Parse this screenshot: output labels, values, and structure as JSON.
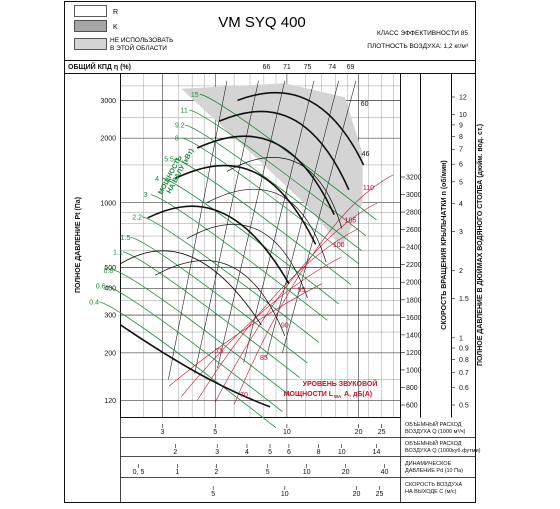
{
  "header": {
    "title": "VM SYQ 400",
    "class_label": "КЛАСС ЭФФЕКТИВНОСТИ 85",
    "density_label": "ПЛОТНОСТЬ ВОЗДУХА: 1,2 кг/м³"
  },
  "legend": [
    {
      "key": "R",
      "label": "R",
      "color": "#ffffff"
    },
    {
      "key": "K",
      "label": "K",
      "color": "#a6a6a6"
    },
    {
      "key": "na",
      "label": "НЕ ИСПОЛЬЗОВАТЬ В ЭТОЙ ОБЛАСТИ",
      "line1": "НЕ ИСПОЛЬЗОВАТЬ",
      "line2": "В ЭТОЙ ОБЛАСТИ",
      "color": "#d4d4d4"
    }
  ],
  "labels": {
    "efficiency": "ОБЩИЙ КПД η (%)",
    "left_axis": "ПОЛНОЕ ДАВЛЕНИЕ Pt (Па)",
    "speed_axis": "СКОРОСТЬ ВРАЩЕНИЯ КРЫЛЬЧАТКИ n (об/мин)",
    "right_axis": "ПОЛНОЕ ДАВЛЕНИЕ В ДЮЙМАХ ВОДЯНОГО СТОЛБА (дюйм. вод. ст.)",
    "power1": "МОЩНОСТЬ",
    "power2": "НА ВАЛУ (кВт)",
    "sound1": "УРОВЕНЬ ЗВУКОВОЙ",
    "sound2": "МОЩНОСТИ L",
    "sound_sub": "WA",
    "sound3": "A, дБ(A)"
  },
  "bottom_rows": [
    {
      "line1": "ОБЪЕМНЫЙ РАСХОД",
      "line2": "ВОЗДУХА Q (1000 м³/ч)"
    },
    {
      "line1": "ОБЪЕМНЫЙ РАСХОД",
      "line2": "ВОЗДУХА Q (1000куб.футми)"
    },
    {
      "line1": "ДИНАМИЧЕСКОЕ",
      "line2": "ДАВЛЕНИЕ Pd (10 Па)"
    },
    {
      "line1": "СКОРОСТЬ ВОЗДУХА",
      "line2": "НА ВЫХОДЕ C (м/с)"
    }
  ],
  "chart_data": {
    "type": "line",
    "title": "VM SYQ 400",
    "x_axis": {
      "label": "ОБЪЕМНЫЙ РАСХОД ВОЗДУХА Q (1000 м³/ч)",
      "scale": "log",
      "range": [
        2,
        30
      ]
    },
    "y_axis": {
      "label": "ПОЛНОЕ ДАВЛЕНИЕ Pt (Па)",
      "scale": "log",
      "range": [
        100,
        4000
      ]
    },
    "pressure_ticks": [
      3000,
      2000,
      1000,
      500,
      400,
      300,
      200,
      120
    ],
    "q_ticks": [
      {
        "v": 3,
        "label": "3"
      },
      {
        "v": 5,
        "label": "5"
      },
      {
        "v": 10,
        "label": "10"
      },
      {
        "v": 20,
        "label": "20"
      },
      {
        "v": 25,
        "label": "25"
      }
    ],
    "cfm_ticks": [
      {
        "v": 2,
        "label": "2"
      },
      {
        "v": 3,
        "label": "3"
      },
      {
        "v": 4,
        "label": "4"
      },
      {
        "v": 5,
        "label": "5"
      },
      {
        "v": 6,
        "label": "6"
      },
      {
        "v": 8,
        "label": "8"
      },
      {
        "v": 10,
        "label": "10"
      },
      {
        "v": 14,
        "label": "14"
      }
    ],
    "pd_ticks": [
      {
        "v": 0.5,
        "label": "0, 5"
      },
      {
        "v": 1,
        "label": "1"
      },
      {
        "v": 2,
        "label": "2"
      },
      {
        "v": 5,
        "label": "5"
      },
      {
        "v": 10,
        "label": "10"
      },
      {
        "v": 20,
        "label": "20"
      },
      {
        "v": 40,
        "label": "40"
      }
    ],
    "c_ticks": [
      {
        "v": 5,
        "label": "5"
      },
      {
        "v": 10,
        "label": "10"
      },
      {
        "v": 20,
        "label": "20"
      },
      {
        "v": 25,
        "label": "25"
      }
    ],
    "speed_ticks": [
      3200,
      3000,
      2800,
      2600,
      2400,
      2200,
      2000,
      1800,
      1600,
      1400,
      1200,
      1000,
      800,
      600
    ],
    "inch_ticks": [
      12,
      10,
      9,
      8,
      7,
      6,
      5,
      4,
      3,
      2,
      1.5,
      1,
      0.9,
      0.8,
      0.7,
      0.6,
      0.5
    ],
    "efficiency_ticks": [
      {
        "label": "66",
        "q": 8.2
      },
      {
        "label": "71",
        "q": 10.0
      },
      {
        "label": "75",
        "q": 12.2
      },
      {
        "label": "74",
        "q": 15.5
      },
      {
        "label": "69",
        "q": 18.5
      }
    ],
    "power_labels": [
      {
        "label": "15",
        "q": 4.1,
        "p": 3200
      },
      {
        "label": "11",
        "q": 3.7,
        "p": 2700
      },
      {
        "label": "9.2",
        "q": 3.55,
        "p": 2300
      },
      {
        "label": "8",
        "q": 3.45,
        "p": 2000
      },
      {
        "label": "5.5",
        "q": 3.2,
        "p": 1600
      },
      {
        "label": "4",
        "q": 2.85,
        "p": 1300
      },
      {
        "label": "3",
        "q": 2.55,
        "p": 1090
      },
      {
        "label": "2.2",
        "q": 2.35,
        "p": 860
      },
      {
        "label": "1.5",
        "q": 2.1,
        "p": 690
      },
      {
        "label": "1.1",
        "q": 1.95,
        "p": 590
      },
      {
        "label": "0.8",
        "q": 1.78,
        "p": 485
      },
      {
        "label": "0.6",
        "q": 1.65,
        "p": 410
      },
      {
        "label": "0.4",
        "q": 1.55,
        "p": 345
      }
    ],
    "sound_labels": [
      {
        "label": "110",
        "q": 22,
        "p": 1180
      },
      {
        "label": "105",
        "q": 18.5,
        "p": 830
      },
      {
        "label": "100",
        "q": 16.5,
        "p": 640
      },
      {
        "label": "95",
        "q": 11.5,
        "p": 395
      },
      {
        "label": "90",
        "q": 9.8,
        "p": 270
      },
      {
        "label": "85",
        "q": 8.0,
        "p": 190
      },
      {
        "label": "75",
        "q": 5.2,
        "p": 205
      },
      {
        "label": "70",
        "q": 6.6,
        "p": 128
      }
    ],
    "speed_curve_labels": [
      {
        "label": "60",
        "q": 21.2,
        "p": 2900
      },
      {
        "label": "46",
        "q": 21.4,
        "p": 1700
      }
    ]
  }
}
